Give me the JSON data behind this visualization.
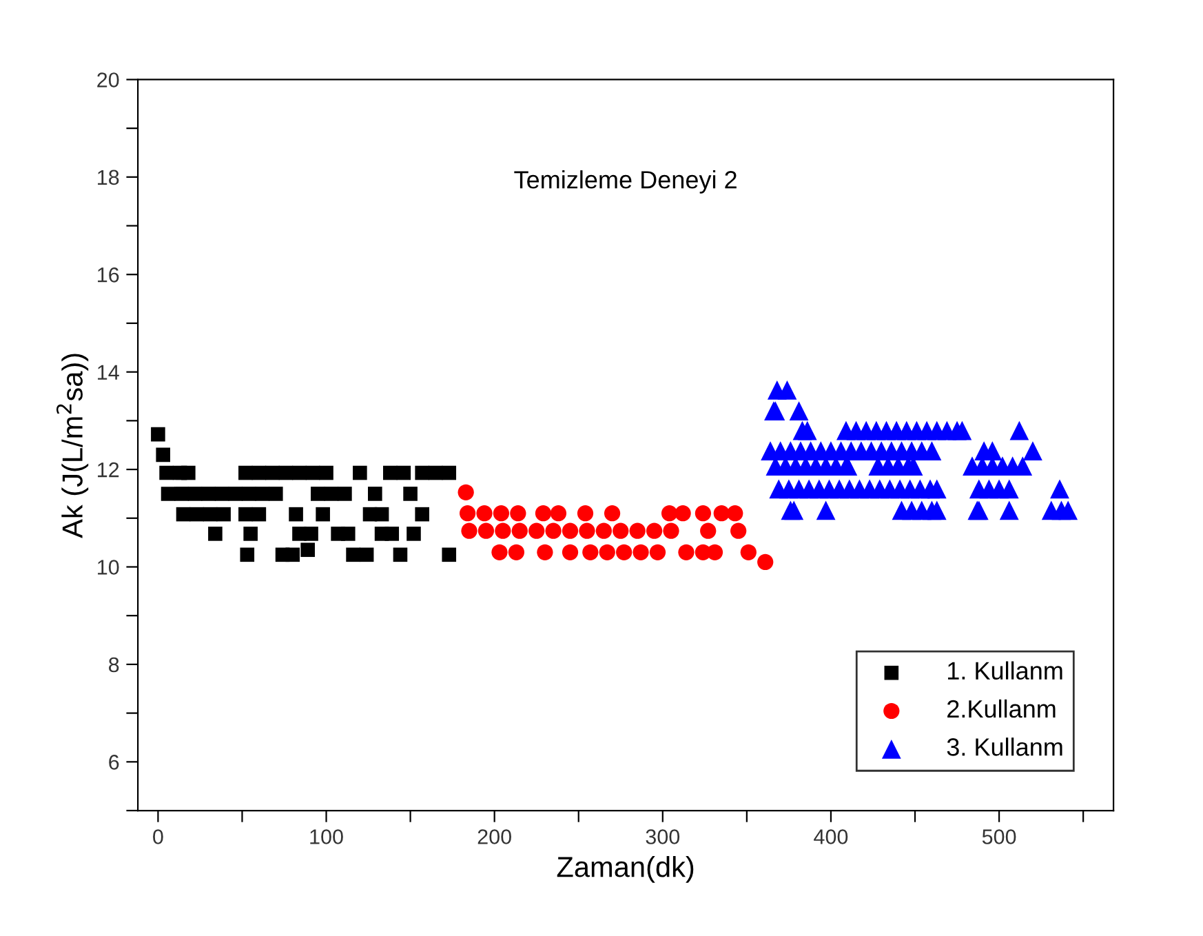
{
  "chart_data": {
    "type": "scatter",
    "title": "Temizleme Deneyi 2",
    "xlabel": "Zaman(dk)",
    "ylabel": "Ak (J(L/m$^{2}$sa))",
    "xlim": [
      -12,
      568
    ],
    "ylim": [
      5,
      20
    ],
    "xticks": [
      0,
      {
        "value": 50,
        "label": null
      },
      100,
      {
        "value": 150,
        "label": null
      },
      200,
      {
        "value": 250,
        "label": null
      },
      300,
      {
        "value": 350,
        "label": null
      },
      400,
      {
        "value": 450,
        "label": null
      },
      500,
      {
        "value": 550,
        "label": null
      }
    ],
    "yticks": [
      {
        "value": 5,
        "label": null
      },
      6,
      {
        "value": 7,
        "label": null
      },
      8,
      {
        "value": 9,
        "label": null
      },
      10,
      {
        "value": 11,
        "label": null
      },
      12,
      {
        "value": 13,
        "label": null
      },
      14,
      {
        "value": 15,
        "label": null
      },
      16,
      {
        "value": 17,
        "label": null
      },
      18,
      {
        "value": 19,
        "label": null
      },
      20
    ],
    "grid": false,
    "legend": "bottom right",
    "series": [
      {
        "name": "1. Kullanm",
        "color": "#000000",
        "marker": "square",
        "x": [
          0,
          3,
          5,
          13,
          18,
          52,
          60,
          68,
          76,
          84,
          92,
          100,
          120,
          138,
          146,
          157,
          165,
          173,
          6,
          14,
          22,
          30,
          38,
          46,
          54,
          62,
          70,
          95,
          103,
          111,
          129,
          150,
          15,
          23,
          31,
          39,
          52,
          60,
          82,
          98,
          126,
          133,
          157,
          34,
          55,
          84,
          91,
          107,
          113,
          133,
          139,
          152,
          53,
          74,
          80,
          89,
          116,
          124,
          144,
          173
        ],
        "values": [
          12.72,
          12.3,
          11.93,
          11.93,
          11.93,
          11.93,
          11.93,
          11.93,
          11.93,
          11.93,
          11.93,
          11.93,
          11.93,
          11.93,
          11.93,
          11.93,
          11.93,
          11.93,
          11.5,
          11.5,
          11.5,
          11.5,
          11.5,
          11.5,
          11.5,
          11.5,
          11.5,
          11.5,
          11.5,
          11.5,
          11.5,
          11.5,
          11.08,
          11.08,
          11.08,
          11.08,
          11.08,
          11.08,
          11.08,
          11.08,
          11.08,
          11.08,
          11.08,
          10.68,
          10.68,
          10.68,
          10.68,
          10.68,
          10.68,
          10.68,
          10.68,
          10.68,
          10.25,
          10.25,
          10.25,
          10.35,
          10.25,
          10.25,
          10.25,
          10.25
        ]
      },
      {
        "name": "2.Kullanm",
        "color": "#ff0000",
        "marker": "circle",
        "x": [
          183,
          184,
          194,
          204,
          214,
          229,
          238,
          254,
          270,
          304,
          312,
          324,
          335,
          343,
          185,
          195,
          205,
          215,
          225,
          235,
          245,
          255,
          265,
          275,
          285,
          295,
          305,
          327,
          345,
          203,
          213,
          230,
          245,
          257,
          267,
          277,
          287,
          297,
          314,
          324,
          331,
          351,
          361
        ],
        "values": [
          11.53,
          11.1,
          11.1,
          11.1,
          11.1,
          11.1,
          11.1,
          11.1,
          11.1,
          11.1,
          11.1,
          11.1,
          11.1,
          11.1,
          10.74,
          10.74,
          10.74,
          10.74,
          10.74,
          10.74,
          10.74,
          10.74,
          10.74,
          10.74,
          10.74,
          10.74,
          10.74,
          10.74,
          10.74,
          10.3,
          10.3,
          10.3,
          10.3,
          10.3,
          10.3,
          10.3,
          10.3,
          10.3,
          10.3,
          10.3,
          10.3,
          10.3,
          10.1
        ]
      },
      {
        "name": "3. Kullanm",
        "color": "#0000ff",
        "marker": "triangle",
        "x": [
          368,
          374,
          366,
          367,
          381,
          383,
          386,
          409,
          415,
          421,
          427,
          433,
          439,
          445,
          451,
          457,
          463,
          469,
          475,
          478,
          512,
          364,
          370,
          376,
          382,
          388,
          394,
          400,
          406,
          412,
          418,
          424,
          430,
          436,
          442,
          448,
          454,
          460,
          491,
          496,
          520,
          367,
          373,
          379,
          385,
          391,
          397,
          403,
          409,
          410,
          428,
          434,
          440,
          446,
          449,
          484,
          490,
          496,
          502,
          508,
          514,
          369,
          375,
          381,
          387,
          393,
          399,
          405,
          411,
          417,
          423,
          429,
          435,
          441,
          447,
          453,
          459,
          463,
          488,
          494,
          500,
          506,
          536,
          376,
          378,
          397,
          442,
          448,
          454,
          460,
          463,
          487,
          488,
          506,
          531,
          537,
          541
        ],
        "values": [
          13.63,
          13.63,
          13.2,
          13.2,
          13.2,
          12.8,
          12.8,
          12.8,
          12.8,
          12.8,
          12.8,
          12.8,
          12.8,
          12.8,
          12.8,
          12.8,
          12.8,
          12.8,
          12.8,
          12.8,
          12.8,
          12.38,
          12.38,
          12.38,
          12.38,
          12.38,
          12.38,
          12.38,
          12.38,
          12.38,
          12.38,
          12.38,
          12.38,
          12.38,
          12.38,
          12.38,
          12.38,
          12.38,
          12.38,
          12.38,
          12.38,
          12.07,
          12.07,
          12.07,
          12.07,
          12.07,
          12.07,
          12.07,
          12.07,
          12.07,
          12.07,
          12.07,
          12.07,
          12.07,
          12.07,
          12.07,
          12.07,
          12.07,
          12.07,
          12.07,
          12.07,
          11.6,
          11.6,
          11.6,
          11.6,
          11.6,
          11.6,
          11.6,
          11.6,
          11.6,
          11.6,
          11.6,
          11.6,
          11.6,
          11.6,
          11.6,
          11.6,
          11.6,
          11.6,
          11.6,
          11.6,
          11.6,
          11.6,
          11.16,
          11.16,
          11.16,
          11.16,
          11.16,
          11.16,
          11.16,
          11.16,
          11.16,
          11.16,
          11.16,
          11.16,
          11.16,
          11.16
        ]
      }
    ]
  }
}
